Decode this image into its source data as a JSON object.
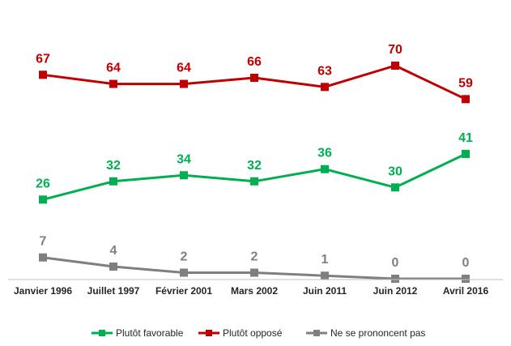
{
  "chart_data": {
    "type": "line",
    "categories": [
      "Janvier 1996",
      "Juillet 1997",
      "Février 2001",
      "Mars 2002",
      "Juin 2011",
      "Juin 2012",
      "Avril 2016"
    ],
    "series": [
      {
        "name": "Plutôt favorable",
        "color": "#00b050",
        "values": [
          26,
          32,
          34,
          32,
          36,
          30,
          41
        ]
      },
      {
        "name": "Plutôt opposé",
        "color": "#c00000",
        "values": [
          67,
          64,
          64,
          66,
          63,
          70,
          59
        ]
      },
      {
        "name": "Ne se prononcent pas",
        "color": "#7f7f7f",
        "values": [
          7,
          4,
          2,
          2,
          1,
          0,
          0
        ]
      }
    ],
    "title": "",
    "xlabel": "",
    "ylabel": "",
    "ylim": [
      0,
      80
    ],
    "grid": false,
    "legend_position": "bottom",
    "data_labels": true
  }
}
